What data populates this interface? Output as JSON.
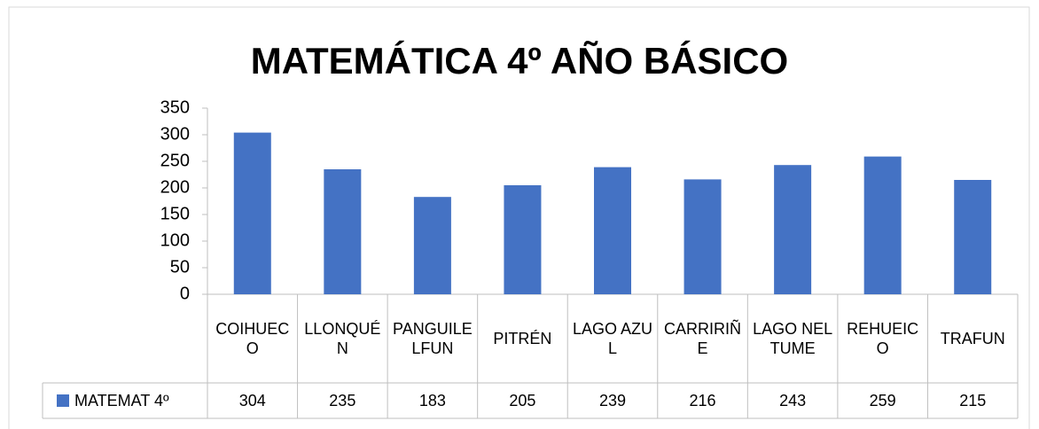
{
  "chart_data": {
    "type": "bar",
    "title": "MATEMÁTICA 4º AÑO BÁSICO",
    "categories": [
      "COIHUECO",
      "LLONQUÉN",
      "PANGUILELFUN",
      "PITRÉN",
      "LAGO AZUL",
      "CARRIRIÑE",
      "LAGO NELTUME",
      "REHUEICO",
      "TRAFUN"
    ],
    "series": [
      {
        "name": "MATEMAT 4º",
        "color": "#4472c4",
        "values": [
          304,
          235,
          183,
          205,
          239,
          216,
          243,
          259,
          215
        ]
      }
    ],
    "ylim": [
      0,
      350
    ],
    "yticks": [
      0,
      50,
      100,
      150,
      200,
      250,
      300,
      350
    ],
    "grid": false
  }
}
